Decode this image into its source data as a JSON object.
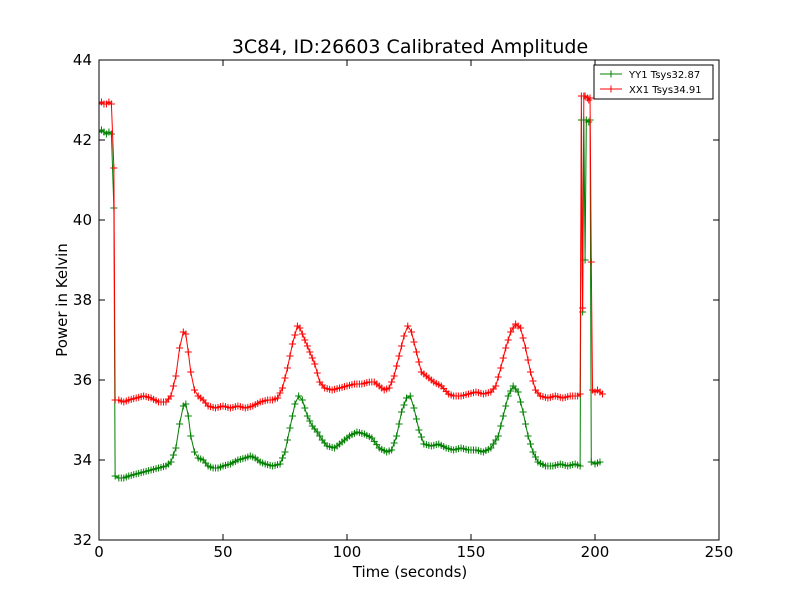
{
  "chart_data": {
    "type": "line",
    "title": "3C84, ID:26603 Calibrated Amplitude",
    "xlabel": "Time (seconds)",
    "ylabel": "Power in Kelvin",
    "xlim": [
      0,
      250
    ],
    "ylim": [
      32,
      44
    ],
    "xticks": [
      0,
      50,
      100,
      150,
      200,
      250
    ],
    "yticks": [
      32,
      34,
      36,
      38,
      40,
      42,
      44
    ],
    "xtick_labels": [
      "0",
      "50",
      "100",
      "150",
      "200",
      "250"
    ],
    "ytick_labels": [
      "32",
      "34",
      "36",
      "38",
      "40",
      "42",
      "44"
    ],
    "grid": false,
    "legend_position": "top-right",
    "marker": "+",
    "series": [
      {
        "name": "YY1 Tsys32.87",
        "color": "#008000",
        "points": [
          [
            0,
            42.2
          ],
          [
            1,
            42.25
          ],
          [
            2,
            42.2
          ],
          [
            3,
            42.15
          ],
          [
            4,
            42.2
          ],
          [
            5,
            42.15
          ],
          [
            6,
            40.3
          ],
          [
            6.5,
            33.6
          ],
          [
            8,
            33.55
          ],
          [
            10,
            33.55
          ],
          [
            12,
            33.6
          ],
          [
            15,
            33.65
          ],
          [
            18,
            33.7
          ],
          [
            21,
            33.75
          ],
          [
            24,
            33.8
          ],
          [
            27,
            33.85
          ],
          [
            29,
            33.95
          ],
          [
            31,
            34.3
          ],
          [
            32.5,
            34.9
          ],
          [
            34,
            35.35
          ],
          [
            35,
            35.4
          ],
          [
            36,
            35.1
          ],
          [
            37,
            34.6
          ],
          [
            38.5,
            34.2
          ],
          [
            40,
            34.05
          ],
          [
            42,
            34.0
          ],
          [
            44,
            33.85
          ],
          [
            46,
            33.8
          ],
          [
            48,
            33.8
          ],
          [
            50,
            33.85
          ],
          [
            53,
            33.9
          ],
          [
            56,
            34.0
          ],
          [
            59,
            34.05
          ],
          [
            61,
            34.1
          ],
          [
            63,
            34.05
          ],
          [
            65,
            33.95
          ],
          [
            67,
            33.9
          ],
          [
            70,
            33.85
          ],
          [
            73,
            33.9
          ],
          [
            75,
            34.2
          ],
          [
            77,
            34.8
          ],
          [
            79,
            35.4
          ],
          [
            80.5,
            35.6
          ],
          [
            82,
            35.5
          ],
          [
            84,
            35.1
          ],
          [
            86,
            34.85
          ],
          [
            88,
            34.7
          ],
          [
            90,
            34.5
          ],
          [
            92,
            34.35
          ],
          [
            95,
            34.3
          ],
          [
            98,
            34.45
          ],
          [
            101,
            34.6
          ],
          [
            104,
            34.7
          ],
          [
            107,
            34.65
          ],
          [
            110,
            34.55
          ],
          [
            113,
            34.3
          ],
          [
            116,
            34.2
          ],
          [
            118,
            34.25
          ],
          [
            120,
            34.6
          ],
          [
            122,
            35.2
          ],
          [
            124,
            35.55
          ],
          [
            125.5,
            35.6
          ],
          [
            127,
            35.3
          ],
          [
            129,
            34.75
          ],
          [
            131,
            34.4
          ],
          [
            134,
            34.35
          ],
          [
            137,
            34.4
          ],
          [
            140,
            34.3
          ],
          [
            143,
            34.25
          ],
          [
            146,
            34.3
          ],
          [
            149,
            34.25
          ],
          [
            152,
            34.25
          ],
          [
            155,
            34.2
          ],
          [
            158,
            34.3
          ],
          [
            161,
            34.6
          ],
          [
            163,
            35.1
          ],
          [
            165,
            35.6
          ],
          [
            167,
            35.85
          ],
          [
            169,
            35.7
          ],
          [
            171,
            35.2
          ],
          [
            173,
            34.6
          ],
          [
            175,
            34.2
          ],
          [
            177,
            33.95
          ],
          [
            180,
            33.85
          ],
          [
            183,
            33.85
          ],
          [
            186,
            33.9
          ],
          [
            189,
            33.85
          ],
          [
            192,
            33.9
          ],
          [
            194,
            33.85
          ],
          [
            194.5,
            42.5
          ],
          [
            195,
            37.7
          ],
          [
            195.5,
            42.5
          ],
          [
            196,
            39.0
          ],
          [
            196.5,
            42.5
          ],
          [
            197.5,
            42.45
          ],
          [
            198,
            42.5
          ],
          [
            198.5,
            33.95
          ],
          [
            200,
            33.9
          ],
          [
            202,
            33.95
          ]
        ]
      },
      {
        "name": "XX1 Tsys34.91",
        "color": "#ff0000",
        "points": [
          [
            0,
            42.9
          ],
          [
            1,
            42.95
          ],
          [
            2,
            42.9
          ],
          [
            3,
            42.9
          ],
          [
            4,
            42.95
          ],
          [
            5,
            42.9
          ],
          [
            6,
            41.3
          ],
          [
            6.5,
            35.5
          ],
          [
            8,
            35.5
          ],
          [
            10,
            35.45
          ],
          [
            12,
            35.5
          ],
          [
            15,
            35.55
          ],
          [
            18,
            35.6
          ],
          [
            21,
            35.55
          ],
          [
            24,
            35.45
          ],
          [
            27,
            35.45
          ],
          [
            29,
            35.6
          ],
          [
            31,
            36.1
          ],
          [
            32.5,
            36.8
          ],
          [
            34,
            37.2
          ],
          [
            35,
            37.15
          ],
          [
            36,
            36.7
          ],
          [
            37,
            36.2
          ],
          [
            38.5,
            35.75
          ],
          [
            40,
            35.6
          ],
          [
            42,
            35.5
          ],
          [
            44,
            35.35
          ],
          [
            47,
            35.3
          ],
          [
            50,
            35.35
          ],
          [
            53,
            35.3
          ],
          [
            56,
            35.35
          ],
          [
            59,
            35.3
          ],
          [
            62,
            35.35
          ],
          [
            65,
            35.45
          ],
          [
            68,
            35.5
          ],
          [
            70,
            35.5
          ],
          [
            72,
            35.55
          ],
          [
            74,
            35.8
          ],
          [
            76,
            36.3
          ],
          [
            78,
            36.9
          ],
          [
            80,
            37.35
          ],
          [
            81,
            37.3
          ],
          [
            83,
            37.0
          ],
          [
            85,
            36.7
          ],
          [
            87,
            36.4
          ],
          [
            89,
            35.95
          ],
          [
            91,
            35.8
          ],
          [
            94,
            35.75
          ],
          [
            97,
            35.8
          ],
          [
            100,
            35.85
          ],
          [
            103,
            35.9
          ],
          [
            106,
            35.9
          ],
          [
            109,
            35.95
          ],
          [
            111,
            35.95
          ],
          [
            113,
            35.85
          ],
          [
            115,
            35.75
          ],
          [
            117,
            35.8
          ],
          [
            119,
            36.1
          ],
          [
            121,
            36.6
          ],
          [
            123,
            37.1
          ],
          [
            124.5,
            37.35
          ],
          [
            126,
            37.2
          ],
          [
            128,
            36.7
          ],
          [
            130,
            36.2
          ],
          [
            132,
            36.1
          ],
          [
            135,
            35.95
          ],
          [
            138,
            35.85
          ],
          [
            141,
            35.65
          ],
          [
            143,
            35.6
          ],
          [
            146,
            35.6
          ],
          [
            149,
            35.65
          ],
          [
            152,
            35.7
          ],
          [
            155,
            35.65
          ],
          [
            158,
            35.7
          ],
          [
            160,
            35.85
          ],
          [
            162,
            36.3
          ],
          [
            164,
            36.8
          ],
          [
            166,
            37.2
          ],
          [
            168,
            37.4
          ],
          [
            170,
            37.3
          ],
          [
            172,
            36.8
          ],
          [
            174,
            36.2
          ],
          [
            176,
            35.75
          ],
          [
            178,
            35.6
          ],
          [
            181,
            35.55
          ],
          [
            184,
            35.6
          ],
          [
            187,
            35.55
          ],
          [
            190,
            35.6
          ],
          [
            193,
            35.6
          ],
          [
            194,
            35.65
          ],
          [
            194.5,
            43.1
          ],
          [
            195,
            37.8
          ],
          [
            195.5,
            43.1
          ],
          [
            196,
            43.1
          ],
          [
            197,
            43.05
          ],
          [
            197.5,
            43.0
          ],
          [
            198,
            43.05
          ],
          [
            198.5,
            38.95
          ],
          [
            199,
            35.75
          ],
          [
            200,
            35.7
          ],
          [
            201,
            35.75
          ],
          [
            202,
            35.7
          ],
          [
            203,
            35.65
          ]
        ]
      }
    ]
  }
}
